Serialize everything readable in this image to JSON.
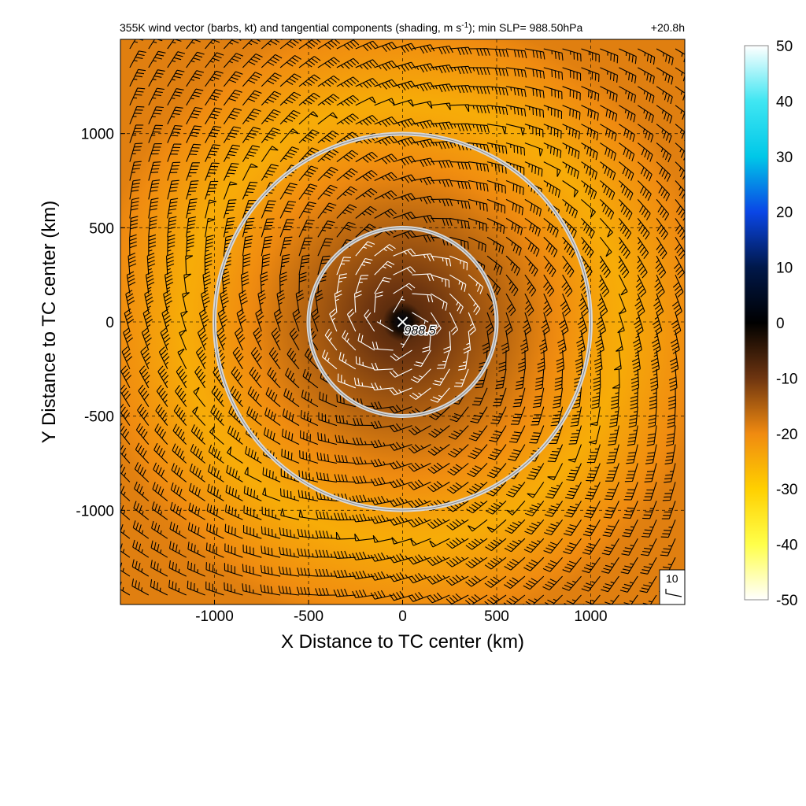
{
  "chart_data": {
    "type": "heatmap",
    "title": "355K wind vector (barbs, kt) and tangential components (shading, m s",
    "title_superscript": "-1",
    "title_tail": "); min SLP= 988.50hPa",
    "time_label": "+20.8h",
    "xlabel": "X Distance to TC center (km)",
    "ylabel": "Y Distance to TC center (km)",
    "xlim": [
      -1500,
      1500
    ],
    "ylim": [
      -1500,
      1500
    ],
    "xticks": [
      -1000,
      -500,
      0,
      500,
      1000
    ],
    "yticks": [
      -1000,
      -500,
      0,
      500,
      1000
    ],
    "xtick_labels": [
      "-1000",
      "-500",
      "0",
      "500",
      "1000"
    ],
    "ytick_labels": [
      "-1000",
      "-500",
      "0",
      "500",
      "1000"
    ],
    "grid": true,
    "range_rings_km": [
      500,
      1000
    ],
    "center_marker": {
      "x": 0,
      "y": 0,
      "label": "988.5"
    },
    "shading": {
      "variable": "tangential wind",
      "units": "m s-1",
      "center_value": 3,
      "rmw_km": 1150,
      "vmax": -25,
      "eye_radius_km": 100
    },
    "barbs": {
      "units": "kt",
      "spacing_km": 100,
      "reference_value": 10,
      "reference_label": "10"
    },
    "colorbar": {
      "vmin": -50,
      "vmax": 50,
      "ticks": [
        50,
        40,
        30,
        20,
        10,
        0,
        -10,
        -20,
        -30,
        -40,
        -50
      ],
      "tick_labels": [
        "50",
        "40",
        "30",
        "20",
        "10",
        "0",
        "-10",
        "-20",
        "-30",
        "-40",
        "-50"
      ],
      "colors": {
        "50": "#ffffff",
        "40": "#40e6f2",
        "30": "#00c8e8",
        "20": "#0a46e6",
        "10": "#00184a",
        "0": "#000000",
        "-10": "#6e3510",
        "-20": "#f08a10",
        "-30": "#ffd000",
        "-40": "#ffff4a",
        "-50": "#ffffff"
      }
    }
  }
}
